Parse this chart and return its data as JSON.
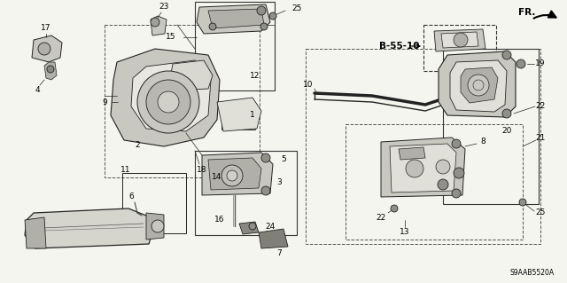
{
  "background_color": "#f5f5f0",
  "fig_width": 6.4,
  "fig_height": 3.19,
  "dpi": 100,
  "diagram_code": "S9AAB5520A",
  "fr_label": "FR.",
  "b_ref": "B-55-10",
  "img_bg": "#f0efe8"
}
